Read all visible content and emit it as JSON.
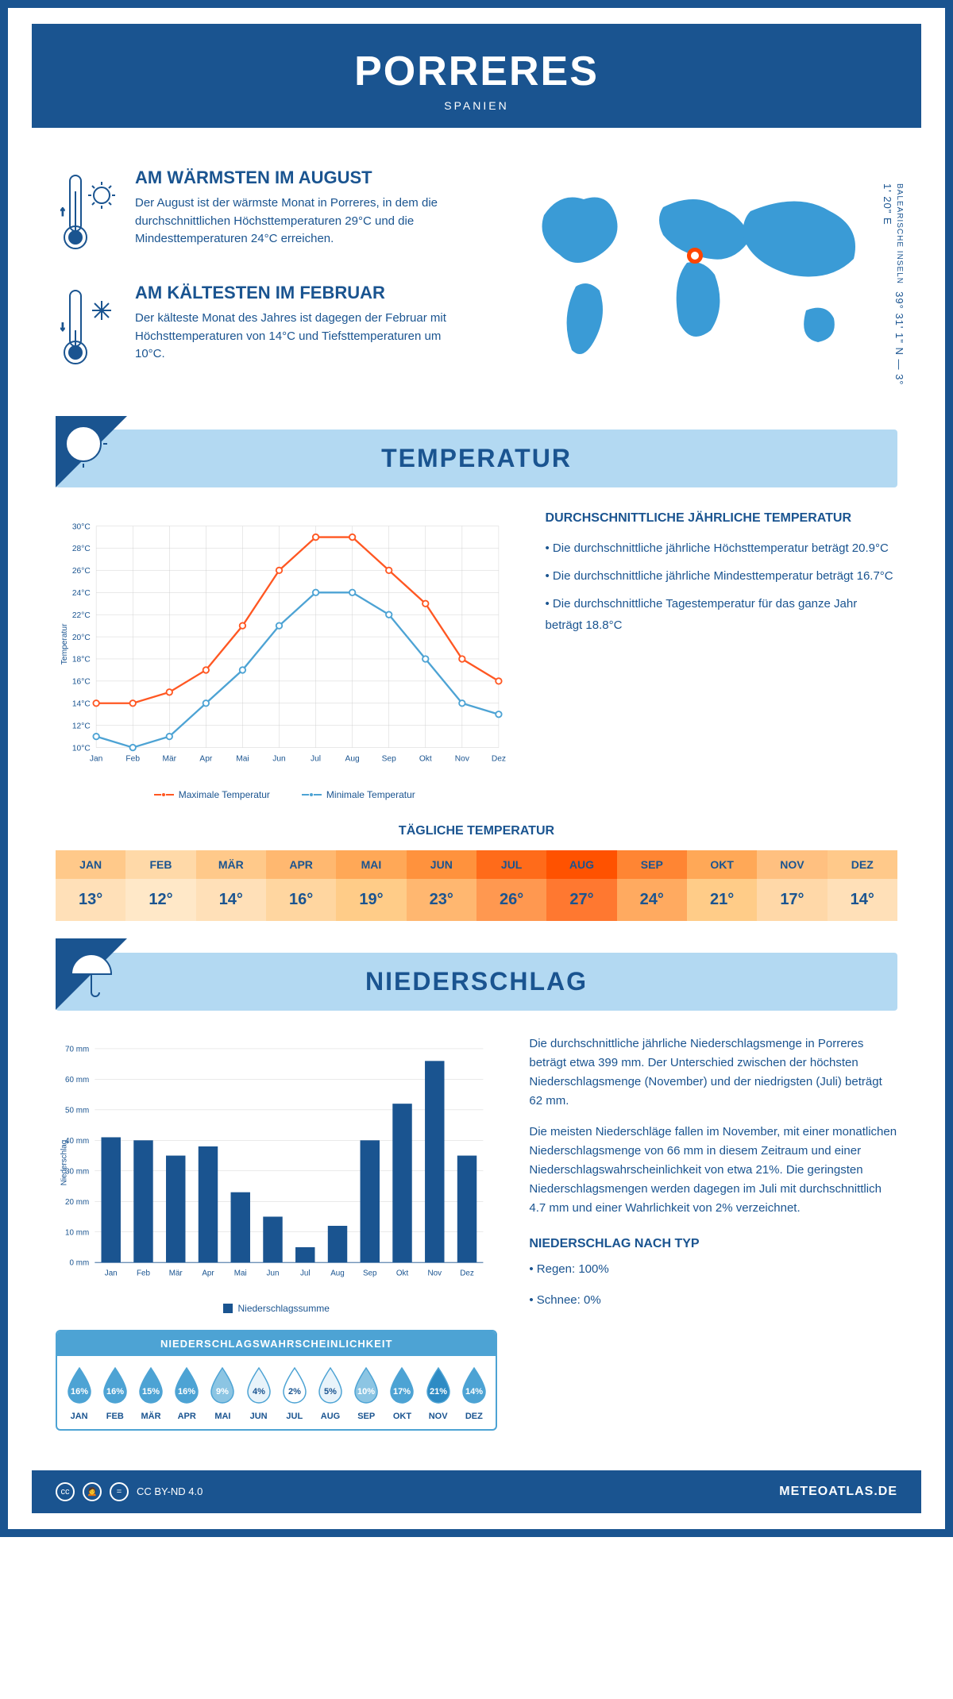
{
  "header": {
    "title": "PORRERES",
    "subtitle": "SPANIEN"
  },
  "coords": {
    "main": "39° 31' 1\" N — 3° 1' 20\" E",
    "sub": "BALEARISCHE INSELN"
  },
  "intro": {
    "warmest": {
      "title": "AM WÄRMSTEN IM AUGUST",
      "text": "Der August ist der wärmste Monat in Porreres, in dem die durchschnittlichen Höchsttemperaturen 29°C und die Mindesttemperaturen 24°C erreichen."
    },
    "coldest": {
      "title": "AM KÄLTESTEN IM FEBRUAR",
      "text": "Der kälteste Monat des Jahres ist dagegen der Februar mit Höchsttemperaturen von 14°C und Tiefsttemperaturen um 10°C."
    }
  },
  "map_marker": {
    "left_pct": 48,
    "top_pct": 36
  },
  "temp_section": {
    "title": "TEMPERATUR",
    "info_title": "DURCHSCHNITTLICHE JÄHRLICHE TEMPERATUR",
    "bullets": [
      "• Die durchschnittliche jährliche Höchsttemperatur beträgt 20.9°C",
      "• Die durchschnittliche jährliche Mindesttemperatur beträgt 16.7°C",
      "• Die durchschnittliche Tagestemperatur für das ganze Jahr beträgt 18.8°C"
    ],
    "legend_max": "Maximale Temperatur",
    "legend_min": "Minimale Temperatur",
    "ylabel": "Temperatur"
  },
  "temp_chart": {
    "type": "line",
    "months": [
      "Jan",
      "Feb",
      "Mär",
      "Apr",
      "Mai",
      "Jun",
      "Jul",
      "Aug",
      "Sep",
      "Okt",
      "Nov",
      "Dez"
    ],
    "max_values": [
      14,
      14,
      15,
      17,
      21,
      26,
      29,
      29,
      26,
      23,
      18,
      16
    ],
    "min_values": [
      11,
      10,
      11,
      14,
      17,
      21,
      24,
      24,
      22,
      18,
      14,
      13
    ],
    "ylim": [
      10,
      30
    ],
    "ytick_step": 2,
    "max_color": "#ff5722",
    "min_color": "#4da3d4",
    "grid_color": "#d0d0d0",
    "marker_style": "circle",
    "background": "#ffffff"
  },
  "daily_temp": {
    "title": "TÄGLICHE TEMPERATUR",
    "months": [
      "JAN",
      "FEB",
      "MÄR",
      "APR",
      "MAI",
      "JUN",
      "JUL",
      "AUG",
      "SEP",
      "OKT",
      "NOV",
      "DEZ"
    ],
    "values": [
      "13°",
      "12°",
      "14°",
      "16°",
      "19°",
      "23°",
      "26°",
      "27°",
      "24°",
      "21°",
      "17°",
      "14°"
    ],
    "header_colors": [
      "#ffc98a",
      "#ffd9a8",
      "#ffc98a",
      "#ffb870",
      "#ffa857",
      "#ff923d",
      "#ff6b1a",
      "#ff5200",
      "#ff8533",
      "#ffa857",
      "#ffc080",
      "#ffc98a"
    ],
    "value_colors": [
      "#ffe0b8",
      "#ffe8c8",
      "#ffe0b8",
      "#ffd6a0",
      "#ffcc88",
      "#ffb770",
      "#ff9850",
      "#ff7830",
      "#ffaa60",
      "#ffcc88",
      "#ffd8a8",
      "#ffe0b8"
    ]
  },
  "precip_section": {
    "title": "NIEDERSCHLAG",
    "text1": "Die durchschnittliche jährliche Niederschlagsmenge in Porreres beträgt etwa 399 mm. Der Unterschied zwischen der höchsten Niederschlagsmenge (November) und der niedrigsten (Juli) beträgt 62 mm.",
    "text2": "Die meisten Niederschläge fallen im November, mit einer monatlichen Niederschlagsmenge von 66 mm in diesem Zeitraum und einer Niederschlagswahrscheinlichkeit von etwa 21%. Die geringsten Niederschlagsmengen werden dagegen im Juli mit durchschnittlich 4.7 mm und einer Wahrlichkeit von 2% verzeichnet.",
    "type_title": "NIEDERSCHLAG NACH TYP",
    "type_bullets": [
      "• Regen: 100%",
      "• Schnee: 0%"
    ],
    "legend": "Niederschlagssumme",
    "ylabel": "Niederschlag"
  },
  "precip_chart": {
    "type": "bar",
    "months": [
      "Jan",
      "Feb",
      "Mär",
      "Apr",
      "Mai",
      "Jun",
      "Jul",
      "Aug",
      "Sep",
      "Okt",
      "Nov",
      "Dez"
    ],
    "values": [
      41,
      40,
      35,
      38,
      23,
      15,
      5,
      12,
      40,
      52,
      66,
      35
    ],
    "ylim": [
      0,
      70
    ],
    "ytick_step": 10,
    "bar_color": "#1a5490",
    "grid_color": "#d0d0d0",
    "bar_width": 0.6
  },
  "prob": {
    "title": "NIEDERSCHLAGSWAHRSCHEINLICHKEIT",
    "months": [
      "JAN",
      "FEB",
      "MÄR",
      "APR",
      "MAI",
      "JUN",
      "JUL",
      "AUG",
      "SEP",
      "OKT",
      "NOV",
      "DEZ"
    ],
    "values": [
      "16%",
      "16%",
      "15%",
      "16%",
      "9%",
      "4%",
      "2%",
      "5%",
      "10%",
      "17%",
      "21%",
      "14%"
    ],
    "drop_colors": [
      "#4da3d4",
      "#4da3d4",
      "#4da3d4",
      "#4da3d4",
      "#8cc5e3",
      "#e8f3fa",
      "#ffffff",
      "#e8f3fa",
      "#8cc5e3",
      "#4da3d4",
      "#2e8bc4",
      "#4da3d4"
    ],
    "text_colors": [
      "#fff",
      "#fff",
      "#fff",
      "#fff",
      "#fff",
      "#1a5490",
      "#1a5490",
      "#1a5490",
      "#fff",
      "#fff",
      "#fff",
      "#fff"
    ]
  },
  "footer": {
    "license": "CC BY-ND 4.0",
    "brand": "METEOATLAS.DE"
  }
}
